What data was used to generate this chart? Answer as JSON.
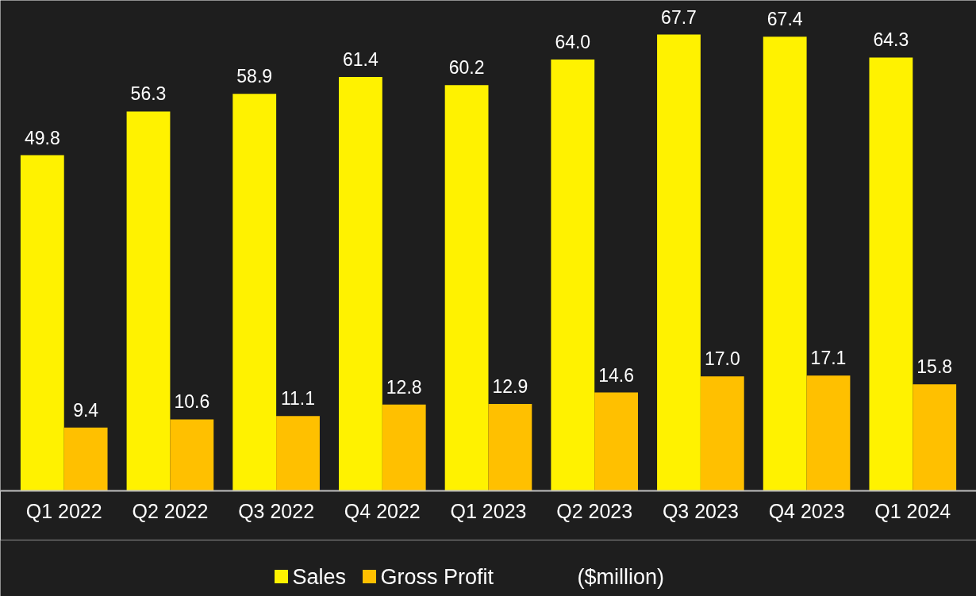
{
  "chart_data": {
    "type": "bar",
    "categories": [
      "Q1 2022",
      "Q2 2022",
      "Q3 2022",
      "Q4 2022",
      "Q1 2023",
      "Q2 2023",
      "Q3 2023",
      "Q4 2023",
      "Q1 2024"
    ],
    "series": [
      {
        "name": "Sales",
        "color": "#fff200",
        "values": [
          49.8,
          56.3,
          58.9,
          61.4,
          60.2,
          64.0,
          67.7,
          67.4,
          64.3
        ],
        "value_labels": [
          "49.8",
          "56.3",
          "58.9",
          "61.4",
          "60.2",
          "64.0",
          "67.7",
          "67.4",
          "64.3"
        ]
      },
      {
        "name": "Gross Profit",
        "color": "#ffc000",
        "values": [
          9.4,
          10.6,
          11.1,
          12.8,
          12.9,
          14.6,
          17.0,
          17.1,
          15.8
        ],
        "value_labels": [
          "9.4",
          "10.6",
          "11.1",
          "12.8",
          "12.9",
          "14.6",
          "17.0",
          "17.1",
          "15.8"
        ]
      }
    ],
    "data_labels": true,
    "grid": false,
    "legend": "bottom",
    "annotations": [
      "($million)"
    ]
  }
}
